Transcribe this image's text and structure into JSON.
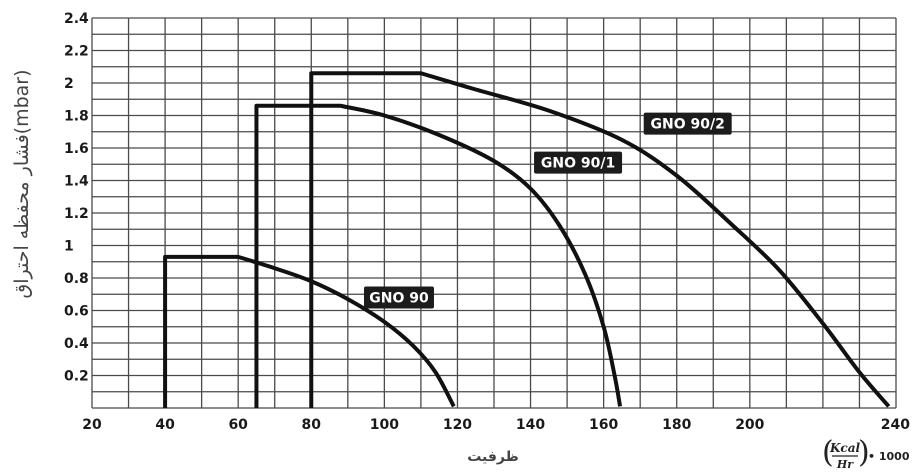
{
  "chart_data": {
    "type": "line",
    "title": "",
    "xlabel": "ظرفیت",
    "ylabel": "فشار محفظه احتراق(mbar)",
    "x_unit": {
      "numerator": "Kcal",
      "denominator": "Hr",
      "multiplier": "• 1000"
    },
    "xlim": [
      20,
      240
    ],
    "ylim": [
      0,
      2.4
    ],
    "x_ticks": [
      "20",
      "40",
      "60",
      "80",
      "100",
      "120",
      "140",
      "160",
      "180",
      "200",
      "240"
    ],
    "y_ticks": [
      "2.4",
      "2.2",
      "2",
      "1.8",
      "1.6",
      "1.4",
      "1.2",
      "1",
      "0.8",
      "0.6",
      "0.4",
      "0.2"
    ],
    "grid": true,
    "series": [
      {
        "name": "GNO 90",
        "points": [
          [
            40,
            0
          ],
          [
            40,
            0.93
          ],
          [
            60,
            0.93
          ],
          [
            70,
            0.86
          ],
          [
            80,
            0.78
          ],
          [
            90,
            0.67
          ],
          [
            100,
            0.53
          ],
          [
            108,
            0.38
          ],
          [
            114,
            0.22
          ],
          [
            119,
            0.01
          ]
        ]
      },
      {
        "name": "GNO 90/1",
        "points": [
          [
            65,
            0
          ],
          [
            65,
            1.86
          ],
          [
            88,
            1.86
          ],
          [
            100,
            1.8
          ],
          [
            115,
            1.68
          ],
          [
            130,
            1.52
          ],
          [
            140,
            1.35
          ],
          [
            148,
            1.12
          ],
          [
            155,
            0.82
          ],
          [
            160,
            0.5
          ],
          [
            163,
            0.2
          ],
          [
            164.5,
            0.01
          ]
        ]
      },
      {
        "name": "GNO 90/2",
        "points": [
          [
            80,
            0
          ],
          [
            80,
            2.06
          ],
          [
            110,
            2.06
          ],
          [
            125,
            1.96
          ],
          [
            145,
            1.83
          ],
          [
            165,
            1.65
          ],
          [
            180,
            1.43
          ],
          [
            195,
            1.13
          ],
          [
            208,
            0.85
          ],
          [
            220,
            0.52
          ],
          [
            230,
            0.22
          ],
          [
            238,
            0.01
          ]
        ]
      }
    ],
    "label_positions": [
      {
        "series": "GNO 90",
        "x": 104,
        "y": 0.68
      },
      {
        "series": "GNO 90/1",
        "x": 153,
        "y": 1.51
      },
      {
        "series": "GNO 90/2",
        "x": 183,
        "y": 1.75
      }
    ]
  }
}
